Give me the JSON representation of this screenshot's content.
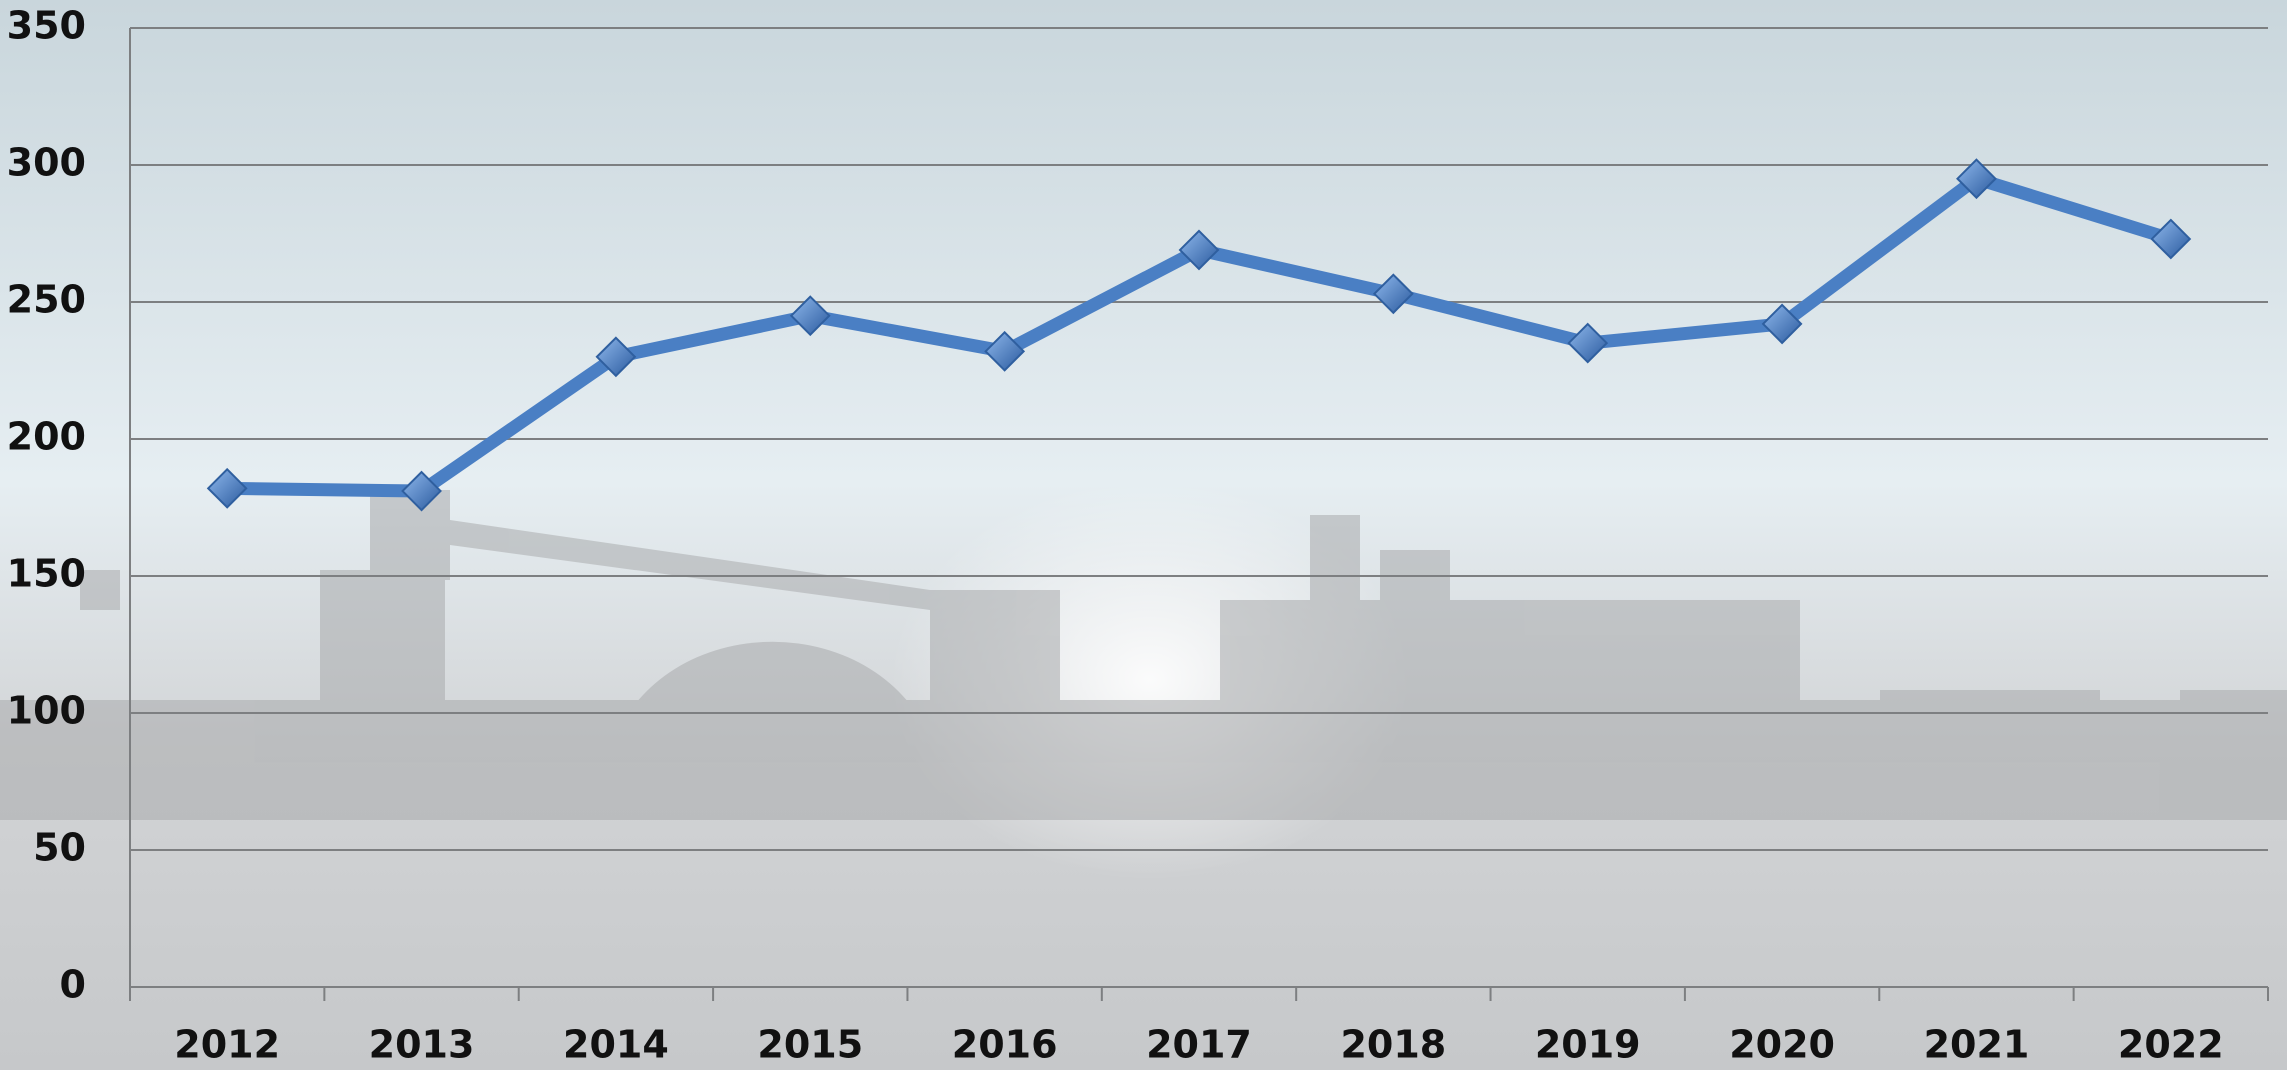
{
  "chart_data": {
    "type": "line",
    "categories": [
      "2012",
      "2013",
      "2014",
      "2015",
      "2016",
      "2017",
      "2018",
      "2019",
      "2020",
      "2021",
      "2022"
    ],
    "series": [
      {
        "color": "#4a7fc4",
        "values": [
          182,
          181,
          230,
          245,
          232,
          269,
          253,
          235,
          242,
          295,
          273
        ]
      }
    ],
    "ylim": [
      0,
      350
    ],
    "yticks": [
      0,
      50,
      100,
      150,
      200,
      250,
      300,
      350
    ],
    "grid": true
  }
}
